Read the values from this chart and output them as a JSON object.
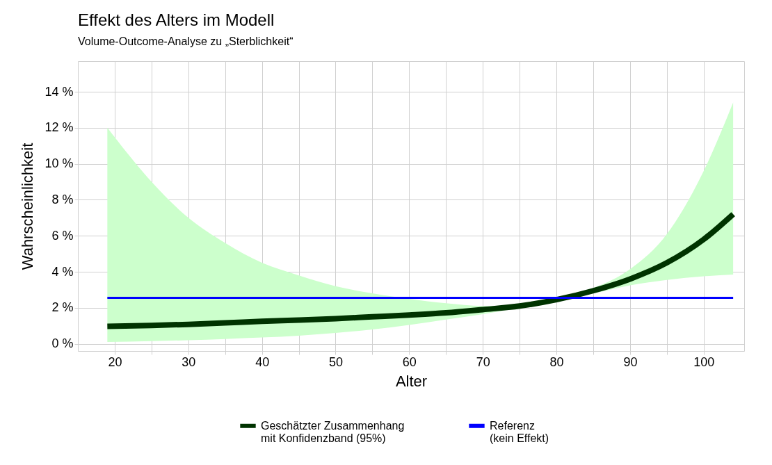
{
  "chart_data": {
    "type": "line",
    "title": "Effekt des Alters im Modell",
    "subtitle": "Volume-Outcome-Analyse zu „Sterblichkeit“",
    "xlabel": "Alter",
    "ylabel": "Wahrscheinlichkeit",
    "xlim": [
      15,
      105.5
    ],
    "ylim": [
      -0.4,
      15.7
    ],
    "xticks": [
      20,
      {
        "value": 25,
        "label": null
      },
      30,
      {
        "value": 35,
        "label": null
      },
      40,
      {
        "value": 45,
        "label": null
      },
      50,
      {
        "value": 55,
        "label": null
      },
      60,
      {
        "value": 65,
        "label": null
      },
      70,
      {
        "value": 75,
        "label": null
      },
      80,
      {
        "value": 85,
        "label": null
      },
      90,
      {
        "value": 95,
        "label": null
      },
      100
    ],
    "yticks": [
      {
        "value": 0,
        "label": "0 %"
      },
      {
        "value": 2,
        "label": "2 %"
      },
      {
        "value": 4,
        "label": "4 %"
      },
      {
        "value": 6,
        "label": "6 %"
      },
      {
        "value": 8,
        "label": "8 %"
      },
      {
        "value": 10,
        "label": "10 %"
      },
      {
        "value": 12,
        "label": "12 %"
      },
      {
        "value": 14,
        "label": "14 %"
      }
    ],
    "grid": true,
    "legend": "bottom",
    "line_style": "solid",
    "series": [
      {
        "name": "Geschätzter Zusammenhang\nmit Konfidenzband (95%)",
        "color": "#003300",
        "x": [
          19,
          25,
          30,
          35,
          40,
          45,
          50,
          55,
          60,
          65,
          70,
          75,
          80,
          85,
          90,
          95,
          100,
          104
        ],
        "values": [
          0.97,
          1.02,
          1.08,
          1.16,
          1.25,
          1.32,
          1.4,
          1.5,
          1.6,
          1.72,
          1.9,
          2.1,
          2.45,
          2.95,
          3.6,
          4.5,
          5.8,
          7.2
        ],
        "lower": [
          0.1,
          0.15,
          0.2,
          0.27,
          0.35,
          0.45,
          0.6,
          0.8,
          1.05,
          1.35,
          1.65,
          2.0,
          2.4,
          2.8,
          3.25,
          3.55,
          3.75,
          3.85
        ],
        "upper": [
          12.0,
          9.0,
          7.0,
          5.6,
          4.5,
          3.8,
          3.2,
          2.8,
          2.5,
          2.25,
          2.1,
          2.15,
          2.5,
          3.1,
          4.15,
          6.1,
          9.6,
          13.4
        ]
      },
      {
        "name": "Referenz\n(kein Effekt)",
        "color": "#0000ff",
        "x": [
          19,
          104
        ],
        "values": [
          2.55,
          2.55
        ]
      }
    ]
  }
}
